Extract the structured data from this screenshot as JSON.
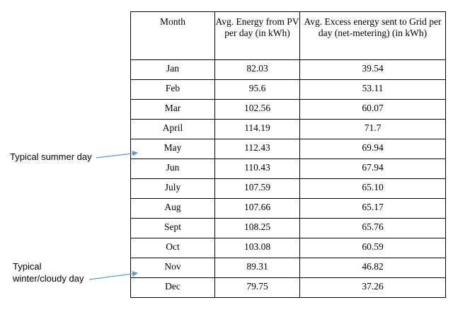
{
  "table": {
    "headers": [
      "Month",
      "Avg. Energy from PV per day (in kWh)",
      "Avg. Excess energy sent to Grid per day (net-metering) (in kWh)"
    ],
    "rows": [
      {
        "month": "Jan",
        "pv": "82.03",
        "excess": "39.54"
      },
      {
        "month": "Feb",
        "pv": "95.6",
        "excess": "53.11"
      },
      {
        "month": "Mar",
        "pv": "102.56",
        "excess": "60.07"
      },
      {
        "month": "April",
        "pv": "114.19",
        "excess": "71.7"
      },
      {
        "month": "May",
        "pv": "112.43",
        "excess": "69.94"
      },
      {
        "month": "Jun",
        "pv": "110.43",
        "excess": "67.94"
      },
      {
        "month": "July",
        "pv": "107.59",
        "excess": "65.10"
      },
      {
        "month": "Aug",
        "pv": "107.66",
        "excess": "65.17"
      },
      {
        "month": "Sept",
        "pv": "108.25",
        "excess": "65.76"
      },
      {
        "month": "Oct",
        "pv": "103.08",
        "excess": "60.59"
      },
      {
        "month": "Nov",
        "pv": "89.31",
        "excess": "46.82"
      },
      {
        "month": "Dec",
        "pv": "79.75",
        "excess": "37.26"
      }
    ]
  },
  "annotations": {
    "summer": {
      "line1": "Typical summer day"
    },
    "winter": {
      "line1": "Typical",
      "line2": "winter/cloudy day"
    },
    "arrow_color": "#5b9bd5"
  }
}
